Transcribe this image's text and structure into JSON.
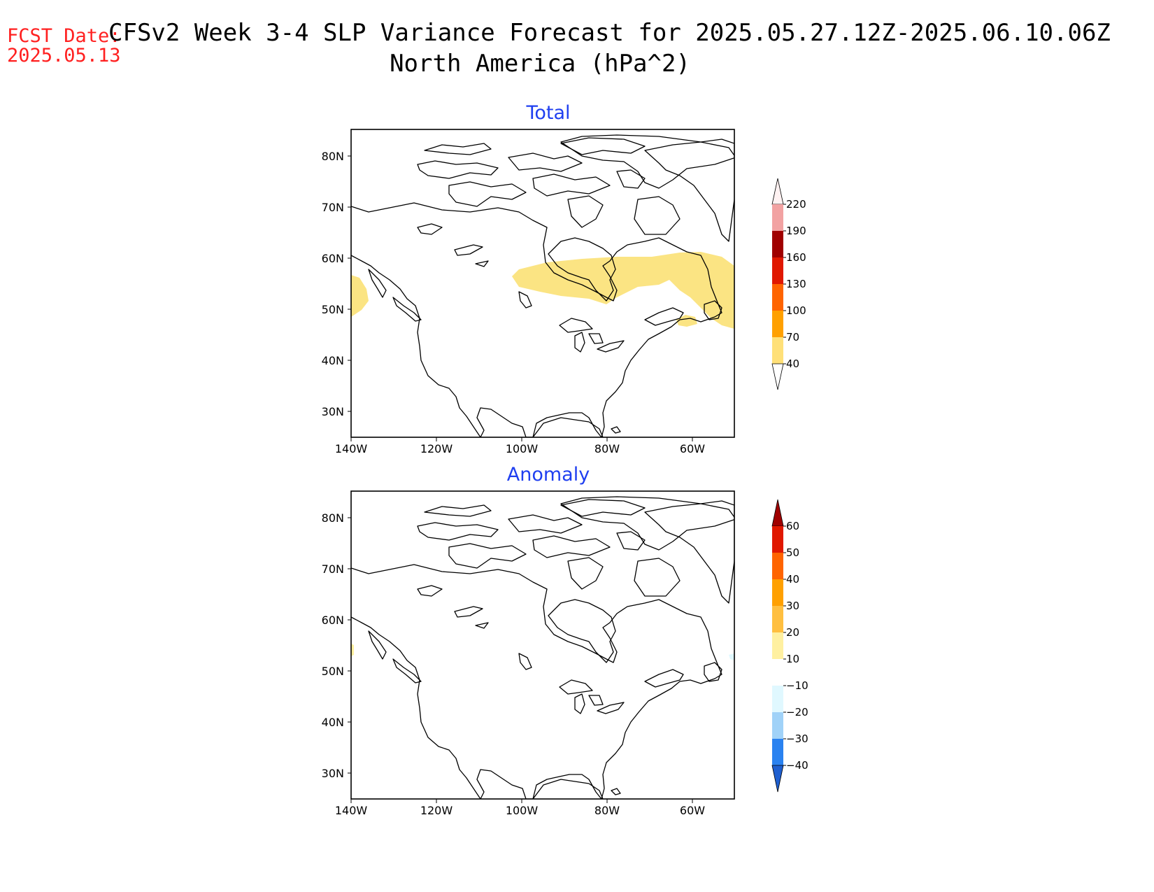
{
  "header": {
    "fcst_label": "FCST Date:",
    "fcst_date": "2025.05.13",
    "title_line1": "CFSv2 Week 3-4 SLP Variance Forecast for 2025.05.27.12Z-2025.06.10.06Z",
    "title_line2": "North America (hPa^2)"
  },
  "axes": {
    "lat_labels": [
      "80N",
      "70N",
      "60N",
      "50N",
      "40N",
      "30N"
    ],
    "lon_labels": [
      "140W",
      "120W",
      "100W",
      "80W",
      "60W"
    ]
  },
  "panels": [
    {
      "title": "Total",
      "colorbar": {
        "levels": [
          "220",
          "190",
          "160",
          "130",
          "100",
          "70",
          "40"
        ],
        "colors": [
          "#fde0e0",
          "#f2a2a2",
          "#a00000",
          "#e01800",
          "#ff6400",
          "#ffa000",
          "#ffe078"
        ]
      },
      "shading": "Variance of 40-70 hPa^2 over central/eastern Canada (Hudson Bay to Labrador/Newfoundland) and off the Pacific coast near 50N"
    },
    {
      "title": "Anomaly",
      "colorbar": {
        "levels": [
          "60",
          "50",
          "40",
          "30",
          "20",
          "10",
          "−10",
          "−20",
          "−30",
          "−40"
        ],
        "colors": [
          "#a00000",
          "#e01800",
          "#ff6400",
          "#ffa000",
          "#ffbf40",
          "#fff0a0",
          "#ffffff",
          "#e0f8ff",
          "#a0d2f8",
          "#2a82f0",
          "#1e5fd0"
        ]
      },
      "shading": "Near-zero anomaly nearly everywhere"
    }
  ],
  "colors": {
    "fcst_label": "#ff2020",
    "panel_title": "#1f3ff0",
    "total_shading": "#fbe483"
  }
}
